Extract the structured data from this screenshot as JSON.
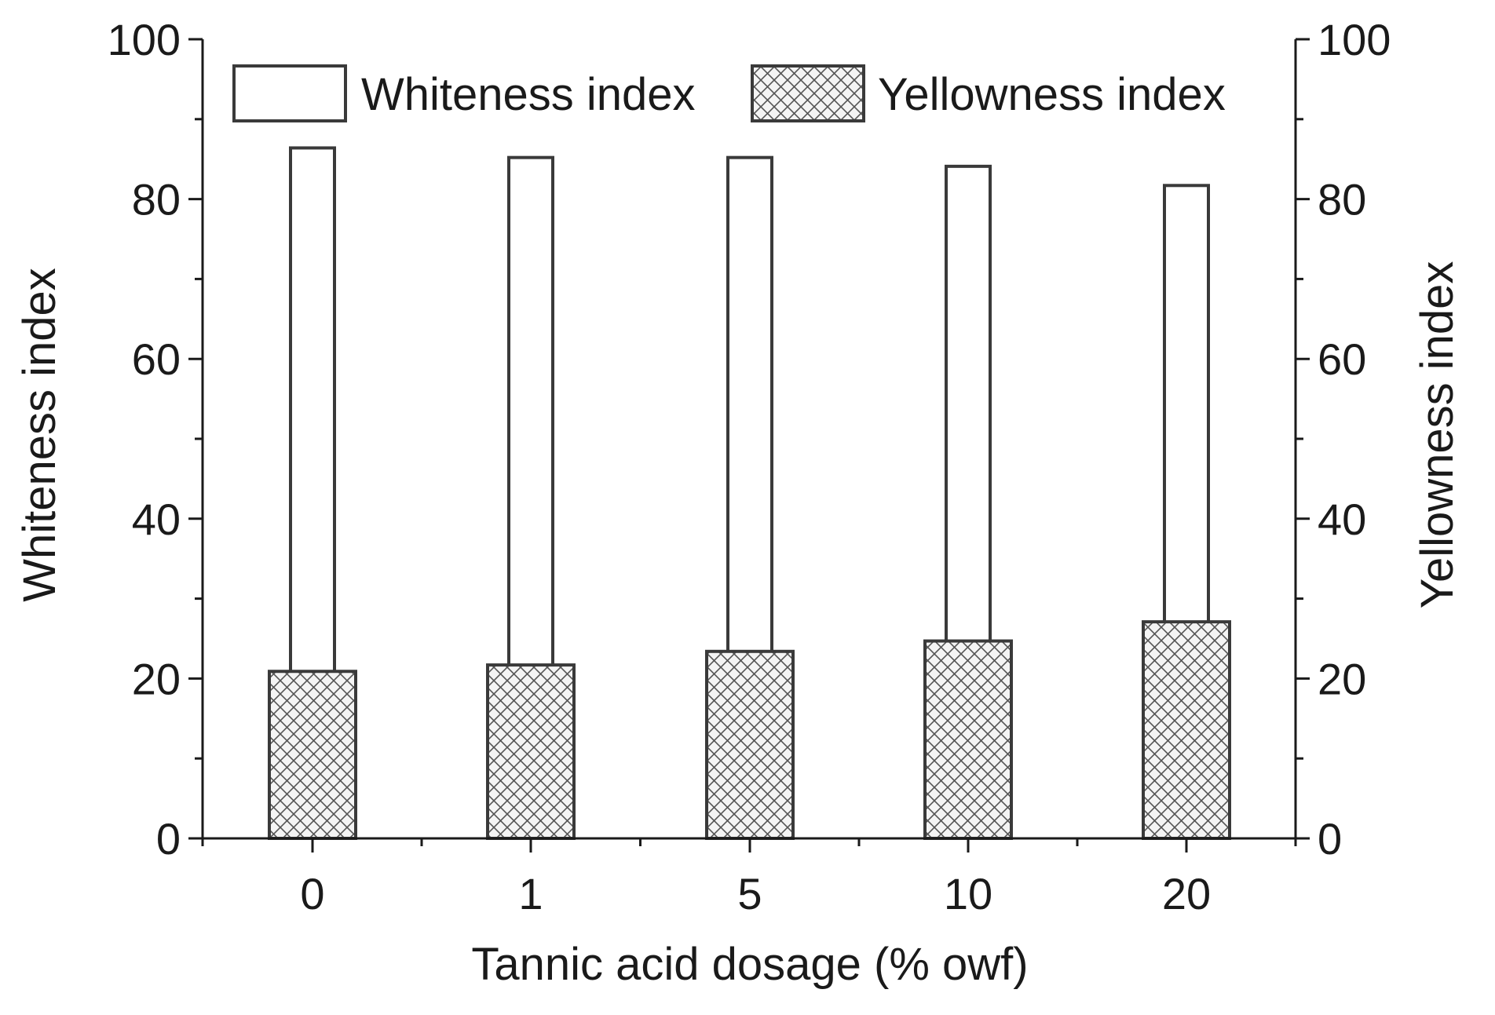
{
  "chart_data": {
    "type": "bar",
    "xlabel": "Tannic acid dosage (% owf)",
    "ylabel_left": "Whiteness index",
    "ylabel_right": "Yellowness index",
    "categories": [
      "0",
      "1",
      "5",
      "10",
      "20"
    ],
    "ylim": [
      0,
      100
    ],
    "yticks": [
      "0",
      "20",
      "40",
      "60",
      "80",
      "100"
    ],
    "series": [
      {
        "name": "Whiteness index",
        "axis": "left",
        "fill": "none",
        "values": [
          86.4,
          85.2,
          85.2,
          84.1,
          81.7
        ]
      },
      {
        "name": "Yellowness index",
        "axis": "right",
        "fill": "crosshatch",
        "values": [
          20.9,
          21.7,
          23.4,
          24.7,
          27.1
        ]
      }
    ],
    "legend_position": "top",
    "grid": false,
    "colors": {
      "axis": "#1a1a1a",
      "bar_edge": "#3a3a3a",
      "hatch": "#555555"
    }
  }
}
